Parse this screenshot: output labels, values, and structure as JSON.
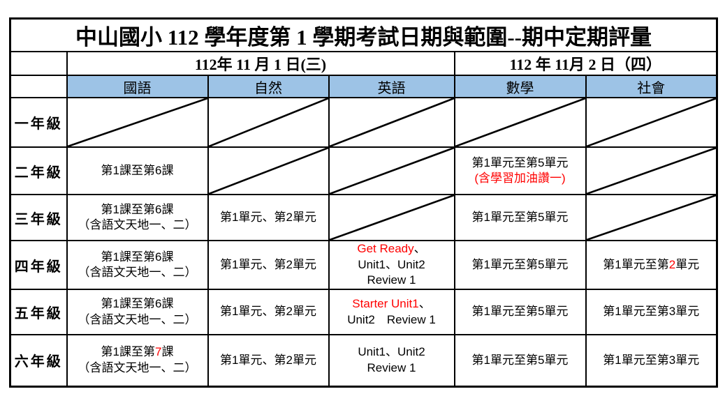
{
  "title": "中山國小 112 學年度第 1 學期考試日期與範圍--期中定期評量",
  "date_headers": [
    {
      "label": "112年 11 月 1 日(三)",
      "colspan": 3
    },
    {
      "label": "112 年 11月 2 日（四）",
      "colspan": 2
    }
  ],
  "subject_headers": [
    "國語",
    "自然",
    "英語",
    "數學",
    "社會"
  ],
  "colors": {
    "subject_header_bg": "#9DC3E6",
    "highlight_red": "#FF0000",
    "border": "#000000"
  },
  "rows": [
    {
      "grade": "一年級",
      "cells": [
        {
          "type": "diagonal"
        },
        {
          "type": "diagonal"
        },
        {
          "type": "diagonal"
        },
        {
          "type": "diagonal"
        },
        {
          "type": "diagonal"
        }
      ]
    },
    {
      "grade": "二年級",
      "cells": [
        {
          "type": "text",
          "lines": [
            [
              {
                "text": "第1課至第6課"
              }
            ]
          ]
        },
        {
          "type": "diagonal"
        },
        {
          "type": "diagonal"
        },
        {
          "type": "text",
          "lines": [
            [
              {
                "text": "第1單元至第5單元"
              }
            ],
            [
              {
                "text": "(含學習加油讚一)",
                "color": "red"
              }
            ]
          ]
        },
        {
          "type": "diagonal"
        }
      ]
    },
    {
      "grade": "三年級",
      "cells": [
        {
          "type": "text",
          "lines": [
            [
              {
                "text": "第1課至第6課"
              }
            ],
            [
              {
                "text": "（含語文天地一、二）"
              }
            ]
          ]
        },
        {
          "type": "text",
          "lines": [
            [
              {
                "text": "第1單元、第2單元"
              }
            ]
          ]
        },
        {
          "type": "diagonal"
        },
        {
          "type": "text",
          "lines": [
            [
              {
                "text": "第1單元至第5單元"
              }
            ]
          ]
        },
        {
          "type": "diagonal"
        }
      ]
    },
    {
      "grade": "四年級",
      "cells": [
        {
          "type": "text",
          "lines": [
            [
              {
                "text": "第1課至第6課"
              }
            ],
            [
              {
                "text": "（含語文天地一、二）"
              }
            ]
          ]
        },
        {
          "type": "text",
          "lines": [
            [
              {
                "text": "第1單元、第2單元"
              }
            ]
          ]
        },
        {
          "type": "text",
          "lines": [
            [
              {
                "text": "Get Ready",
                "color": "red"
              },
              {
                "text": "、"
              }
            ],
            [
              {
                "text": "Unit1、Unit2"
              }
            ],
            [
              {
                "text": "Review 1"
              }
            ]
          ]
        },
        {
          "type": "text",
          "lines": [
            [
              {
                "text": "第1單元至第5單元"
              }
            ]
          ]
        },
        {
          "type": "text",
          "lines": [
            [
              {
                "text": "第1單元至第"
              },
              {
                "text": "2",
                "color": "red"
              },
              {
                "text": "單元"
              }
            ]
          ]
        }
      ]
    },
    {
      "grade": "五年級",
      "cells": [
        {
          "type": "text",
          "lines": [
            [
              {
                "text": "第1課至第6課"
              }
            ],
            [
              {
                "text": "（含語文天地一、二）"
              }
            ]
          ]
        },
        {
          "type": "text",
          "lines": [
            [
              {
                "text": "第1單元、第2單元"
              }
            ]
          ]
        },
        {
          "type": "text",
          "lines": [
            [
              {
                "text": "Starter Unit1",
                "color": "red"
              },
              {
                "text": "、"
              }
            ],
            [
              {
                "text": "Unit2　Review 1"
              }
            ]
          ]
        },
        {
          "type": "text",
          "lines": [
            [
              {
                "text": "第1單元至第5單元"
              }
            ]
          ]
        },
        {
          "type": "text",
          "lines": [
            [
              {
                "text": "第1單元至第3單元"
              }
            ]
          ]
        }
      ]
    },
    {
      "grade": "六年級",
      "cells": [
        {
          "type": "text",
          "lines": [
            [
              {
                "text": "第1課至第"
              },
              {
                "text": "7",
                "color": "red"
              },
              {
                "text": "課"
              }
            ],
            [
              {
                "text": "（含語文天地一、二）"
              }
            ]
          ]
        },
        {
          "type": "text",
          "lines": [
            [
              {
                "text": "第1單元、第2單元"
              }
            ]
          ]
        },
        {
          "type": "text",
          "lines": [
            [
              {
                "text": "Unit1、Unit2"
              }
            ],
            [
              {
                "text": "Review 1"
              }
            ]
          ]
        },
        {
          "type": "text",
          "lines": [
            [
              {
                "text": "第1單元至第5單元"
              }
            ]
          ]
        },
        {
          "type": "text",
          "lines": [
            [
              {
                "text": "第1單元至第3單元"
              }
            ]
          ]
        }
      ]
    }
  ]
}
